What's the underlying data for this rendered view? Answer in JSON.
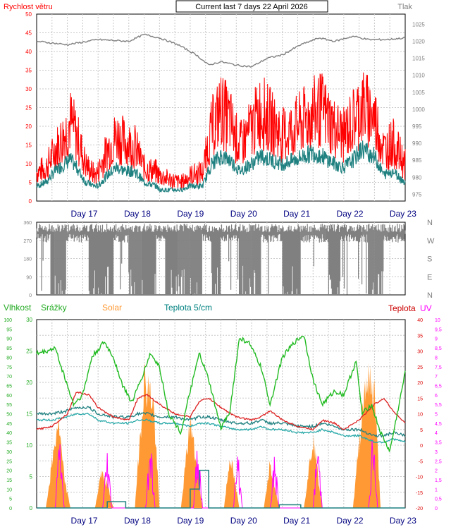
{
  "header": {
    "left_label": "Rychlost větru",
    "title": "Current last 7 days 22 April 2026",
    "right_label": "Tlak"
  },
  "colors": {
    "wind_speed": "#ff0000",
    "wind_avg": "#1f8080",
    "pressure": "#808080",
    "direction": "#808080",
    "humidity": "#22bb22",
    "rain": "#22aa22",
    "solar": "#ff9933",
    "temperature": "#dd2222",
    "temp_soil": "#28a8a8",
    "uv": "#ff00ff"
  },
  "day_labels": [
    "Day 17",
    "Day 18",
    "Day 19",
    "Day 20",
    "Day 21",
    "Day 22",
    "Day 23"
  ],
  "chart_data": [
    {
      "type": "line",
      "name": "wind",
      "left_axis_label": "Rychlost větru",
      "right_axis_label": "Tlak",
      "y_left_ticks": [
        "0",
        "5",
        "10",
        "15",
        "20",
        "25",
        "30",
        "35",
        "40",
        "45",
        "50"
      ],
      "ylim_left": [
        0,
        50
      ],
      "y_right_ticks": [
        "975",
        "980",
        "985",
        "990",
        "995",
        "1000",
        "1005",
        "1010",
        "1015",
        "1020",
        "1025"
      ],
      "ylim_right": [
        973,
        1028
      ],
      "x_labels": [
        "Day 17",
        "Day 18",
        "Day 19",
        "Day 20",
        "Day 21",
        "Day 22",
        "Day 23"
      ],
      "grid": true,
      "wind_gust_approx": [
        [
          0.0,
          8
        ],
        [
          0.3,
          9
        ],
        [
          0.6,
          14
        ],
        [
          0.9,
          18
        ],
        [
          1.1,
          22
        ],
        [
          1.3,
          18
        ],
        [
          1.6,
          10
        ],
        [
          1.9,
          7
        ],
        [
          2.0,
          8
        ],
        [
          2.3,
          14
        ],
        [
          2.6,
          18
        ],
        [
          2.9,
          16
        ],
        [
          3.2,
          15
        ],
        [
          3.5,
          9
        ],
        [
          3.9,
          8
        ],
        [
          4.0,
          7
        ],
        [
          4.3,
          6
        ],
        [
          4.7,
          5
        ],
        [
          5.0,
          7
        ],
        [
          5.4,
          8
        ],
        [
          5.7,
          20
        ],
        [
          6.0,
          25
        ],
        [
          6.3,
          22
        ],
        [
          6.6,
          15
        ],
        [
          7.0,
          20
        ],
        [
          7.3,
          25
        ],
        [
          7.6,
          22
        ],
        [
          8.0,
          18
        ],
        [
          8.4,
          20
        ],
        [
          8.7,
          22
        ],
        [
          9.0,
          24
        ],
        [
          9.3,
          25
        ],
        [
          9.7,
          20
        ],
        [
          10.0,
          18
        ],
        [
          10.3,
          22
        ],
        [
          10.6,
          26
        ],
        [
          11.0,
          23
        ],
        [
          11.3,
          14
        ],
        [
          11.6,
          16
        ],
        [
          12.0,
          10
        ]
      ],
      "wind_avg_approx": [
        [
          0.0,
          4
        ],
        [
          0.3,
          5
        ],
        [
          0.6,
          8
        ],
        [
          0.9,
          10
        ],
        [
          1.1,
          11
        ],
        [
          1.3,
          9
        ],
        [
          1.6,
          5
        ],
        [
          1.9,
          4
        ],
        [
          2.0,
          4
        ],
        [
          2.3,
          7
        ],
        [
          2.6,
          9
        ],
        [
          2.9,
          8
        ],
        [
          3.2,
          8
        ],
        [
          3.5,
          5
        ],
        [
          3.9,
          4
        ],
        [
          4.0,
          3
        ],
        [
          4.3,
          3
        ],
        [
          4.7,
          3
        ],
        [
          5.0,
          4
        ],
        [
          5.4,
          4
        ],
        [
          5.7,
          10
        ],
        [
          6.0,
          12
        ],
        [
          6.3,
          11
        ],
        [
          6.6,
          8
        ],
        [
          7.0,
          10
        ],
        [
          7.3,
          12
        ],
        [
          7.6,
          11
        ],
        [
          8.0,
          10
        ],
        [
          8.4,
          11
        ],
        [
          8.7,
          12
        ],
        [
          9.0,
          13
        ],
        [
          9.3,
          12
        ],
        [
          9.7,
          10
        ],
        [
          10.0,
          9
        ],
        [
          10.3,
          11
        ],
        [
          10.6,
          14
        ],
        [
          11.0,
          12
        ],
        [
          11.3,
          7
        ],
        [
          11.6,
          8
        ],
        [
          12.0,
          5
        ]
      ],
      "pressure_approx": [
        [
          0.0,
          1020
        ],
        [
          1.0,
          1019
        ],
        [
          2.0,
          1020.5
        ],
        [
          3.0,
          1020
        ],
        [
          3.5,
          1022
        ],
        [
          4.0,
          1021
        ],
        [
          4.6,
          1019
        ],
        [
          5.2,
          1016
        ],
        [
          5.6,
          1013
        ],
        [
          6.0,
          1014
        ],
        [
          6.5,
          1013
        ],
        [
          7.0,
          1012.5
        ],
        [
          7.5,
          1015
        ],
        [
          8.0,
          1016
        ],
        [
          8.6,
          1019
        ],
        [
          9.2,
          1021
        ],
        [
          9.7,
          1020
        ],
        [
          10.3,
          1021.5
        ],
        [
          10.8,
          1020.5
        ],
        [
          11.4,
          1020.5
        ],
        [
          12.0,
          1021
        ]
      ]
    },
    {
      "type": "line",
      "name": "wind_direction",
      "y_left_ticks": [
        "0",
        "90",
        "180",
        "270",
        "360"
      ],
      "ylim_left": [
        0,
        360
      ],
      "y_right_ticks": [
        "N",
        "W",
        "S",
        "E",
        "N"
      ],
      "grid": true,
      "direction_blocks_approx": [
        [
          0.0,
          0.45,
          "high"
        ],
        [
          0.45,
          0.95,
          "full"
        ],
        [
          0.95,
          1.7,
          "high"
        ],
        [
          1.7,
          2.5,
          "full"
        ],
        [
          2.5,
          3.0,
          "high"
        ],
        [
          3.0,
          3.9,
          "full"
        ],
        [
          3.9,
          4.2,
          "high"
        ],
        [
          4.2,
          5.4,
          "full"
        ],
        [
          5.4,
          5.7,
          "high"
        ],
        [
          5.7,
          6.0,
          "full"
        ],
        [
          6.0,
          6.6,
          "high"
        ],
        [
          6.6,
          7.3,
          "full"
        ],
        [
          7.3,
          8.0,
          "high"
        ],
        [
          8.0,
          8.6,
          "full"
        ],
        [
          8.6,
          9.5,
          "high"
        ],
        [
          9.5,
          9.9,
          "full"
        ],
        [
          9.9,
          10.8,
          "high"
        ],
        [
          10.8,
          11.3,
          "full"
        ],
        [
          11.3,
          12.0,
          "high"
        ]
      ]
    },
    {
      "type": "line",
      "name": "weather",
      "labels_top": [
        "Vlhkost",
        "Srážky",
        "Solar",
        "Teplota 5/cm",
        "Teplota",
        "UV"
      ],
      "y_humidity_ticks": [
        "0",
        "5",
        "10",
        "15",
        "20",
        "25",
        "30",
        "35",
        "40",
        "45",
        "50",
        "55",
        "60",
        "65",
        "70",
        "75",
        "80",
        "85",
        "90",
        "95",
        "100"
      ],
      "y_rain_ticks": [
        "0",
        "5",
        "10",
        "15",
        "20",
        "25",
        "30"
      ],
      "y_temp_ticks": [
        "-20",
        "-15",
        "-10",
        "-5",
        "0",
        "5",
        "10",
        "15",
        "20",
        "25",
        "30",
        "35",
        "40"
      ],
      "y_uv_ticks": [
        "0",
        "0,5",
        "1",
        "1,5",
        "2",
        "2,5",
        "3",
        "3,5",
        "4",
        "4,5",
        "5",
        "5,5",
        "6",
        "6,5",
        "7",
        "7,5",
        "8",
        "8,5",
        "9",
        "9,5",
        "10"
      ],
      "ylim_temp": [
        -20,
        40
      ],
      "ylim_humidity": [
        0,
        100
      ],
      "x_labels": [
        "Day 17",
        "Day 18",
        "Day 19",
        "Day 20",
        "Day 21",
        "Day 22",
        "Day 23"
      ],
      "grid": true,
      "temperature_approx": [
        [
          0.0,
          5
        ],
        [
          0.5,
          6
        ],
        [
          1.0,
          10
        ],
        [
          1.3,
          17
        ],
        [
          1.7,
          16
        ],
        [
          2.0,
          12
        ],
        [
          2.5,
          9
        ],
        [
          3.0,
          8
        ],
        [
          3.3,
          15
        ],
        [
          3.6,
          16
        ],
        [
          4.0,
          13
        ],
        [
          4.5,
          10
        ],
        [
          5.0,
          9
        ],
        [
          5.3,
          14
        ],
        [
          5.6,
          15
        ],
        [
          6.0,
          12
        ],
        [
          6.5,
          9
        ],
        [
          7.0,
          8
        ],
        [
          7.3,
          9
        ],
        [
          7.6,
          11
        ],
        [
          8.0,
          8
        ],
        [
          8.5,
          6
        ],
        [
          9.0,
          5
        ],
        [
          9.3,
          8
        ],
        [
          9.7,
          7
        ],
        [
          10.0,
          5
        ],
        [
          10.5,
          8
        ],
        [
          11.0,
          13
        ],
        [
          11.3,
          15
        ],
        [
          11.6,
          11
        ],
        [
          12.0,
          7
        ]
      ],
      "temp_soil_approx": [
        [
          0.0,
          8
        ],
        [
          0.5,
          8
        ],
        [
          1.0,
          9
        ],
        [
          1.3,
          10
        ],
        [
          1.7,
          10
        ],
        [
          2.0,
          8
        ],
        [
          2.5,
          7
        ],
        [
          3.0,
          7
        ],
        [
          3.3,
          8
        ],
        [
          3.6,
          8
        ],
        [
          4.0,
          7
        ],
        [
          4.5,
          7
        ],
        [
          5.0,
          6
        ],
        [
          5.3,
          7
        ],
        [
          5.6,
          7
        ],
        [
          6.0,
          6
        ],
        [
          6.5,
          5
        ],
        [
          7.0,
          5
        ],
        [
          7.3,
          6
        ],
        [
          7.6,
          5
        ],
        [
          8.0,
          5
        ],
        [
          8.5,
          4
        ],
        [
          9.0,
          4
        ],
        [
          9.3,
          5
        ],
        [
          9.7,
          4
        ],
        [
          10.0,
          3
        ],
        [
          10.5,
          3
        ],
        [
          11.0,
          1
        ],
        [
          11.3,
          1
        ],
        [
          11.6,
          2
        ],
        [
          12.0,
          1
        ]
      ],
      "humidity_approx": [
        [
          0.0,
          82
        ],
        [
          0.3,
          83
        ],
        [
          0.6,
          85
        ],
        [
          0.9,
          70
        ],
        [
          1.2,
          55
        ],
        [
          1.5,
          60
        ],
        [
          1.8,
          80
        ],
        [
          2.2,
          88
        ],
        [
          2.5,
          80
        ],
        [
          2.8,
          65
        ],
        [
          3.1,
          56
        ],
        [
          3.4,
          68
        ],
        [
          3.7,
          82
        ],
        [
          4.0,
          75
        ],
        [
          4.3,
          50
        ],
        [
          4.7,
          40
        ],
        [
          5.0,
          62
        ],
        [
          5.3,
          82
        ],
        [
          5.6,
          68
        ],
        [
          6.0,
          42
        ],
        [
          6.3,
          52
        ],
        [
          6.6,
          90
        ],
        [
          6.9,
          88
        ],
        [
          7.3,
          75
        ],
        [
          7.6,
          55
        ],
        [
          8.0,
          80
        ],
        [
          8.4,
          88
        ],
        [
          8.7,
          92
        ],
        [
          9.0,
          68
        ],
        [
          9.3,
          55
        ],
        [
          9.7,
          62
        ],
        [
          10.0,
          60
        ],
        [
          10.4,
          78
        ],
        [
          10.6,
          50
        ],
        [
          10.9,
          55
        ],
        [
          11.2,
          40
        ],
        [
          11.5,
          30
        ],
        [
          11.8,
          55
        ],
        [
          12.0,
          72
        ]
      ],
      "solar_approx": [
        [
          0.3,
          0
        ],
        [
          0.7,
          15
        ],
        [
          0.9,
          5
        ],
        [
          1.1,
          0
        ],
        [
          1.9,
          0
        ],
        [
          2.1,
          6
        ],
        [
          2.3,
          4
        ],
        [
          2.5,
          0
        ],
        [
          3.2,
          0
        ],
        [
          3.5,
          22
        ],
        [
          3.8,
          18
        ],
        [
          4.0,
          0
        ],
        [
          4.7,
          0
        ],
        [
          5.0,
          15
        ],
        [
          5.4,
          0
        ],
        [
          6.1,
          0
        ],
        [
          6.3,
          9
        ],
        [
          6.6,
          0
        ],
        [
          7.4,
          0
        ],
        [
          7.6,
          8
        ],
        [
          7.9,
          0
        ],
        [
          8.7,
          0
        ],
        [
          9.0,
          12
        ],
        [
          9.3,
          0
        ],
        [
          10.3,
          0
        ],
        [
          10.7,
          22
        ],
        [
          11.0,
          20
        ],
        [
          11.2,
          0
        ]
      ],
      "uv_approx": [
        [
          0.6,
          0
        ],
        [
          0.75,
          3.3
        ],
        [
          0.9,
          0
        ],
        [
          2.15,
          0
        ],
        [
          2.3,
          2.7
        ],
        [
          2.45,
          0
        ],
        [
          3.55,
          0
        ],
        [
          3.7,
          3.6
        ],
        [
          3.85,
          0
        ],
        [
          5.1,
          0
        ],
        [
          5.25,
          3.3
        ],
        [
          5.4,
          0
        ],
        [
          6.4,
          0
        ],
        [
          6.55,
          2.6
        ],
        [
          6.7,
          0
        ],
        [
          7.6,
          0
        ],
        [
          7.75,
          2.4
        ],
        [
          7.9,
          0
        ],
        [
          9.0,
          0
        ],
        [
          9.15,
          3.2
        ],
        [
          9.3,
          0
        ],
        [
          10.8,
          0
        ],
        [
          10.95,
          3.6
        ],
        [
          11.1,
          0
        ]
      ]
    }
  ]
}
